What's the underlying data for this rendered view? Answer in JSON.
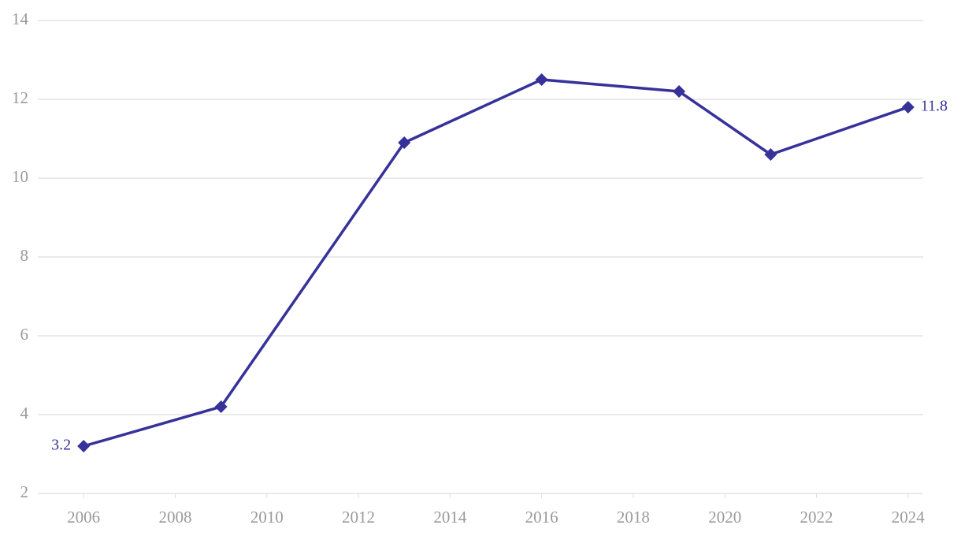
{
  "chart_data": {
    "type": "line",
    "x": [
      2006,
      2009,
      2013,
      2016,
      2019,
      2021,
      2024
    ],
    "series": [
      {
        "color": "#36329a",
        "values": [
          3.2,
          4.2,
          10.9,
          12.5,
          12.2,
          10.6,
          11.8
        ]
      }
    ],
    "xlim": [
      2005,
      2024.33
    ],
    "xticks": [
      2006,
      2008,
      2010,
      2012,
      2014,
      2016,
      2018,
      2020,
      2022,
      2024
    ],
    "ylim": [
      2,
      14
    ],
    "yticks": [
      2,
      4,
      6,
      8,
      10,
      12,
      14
    ],
    "grid": true
  }
}
